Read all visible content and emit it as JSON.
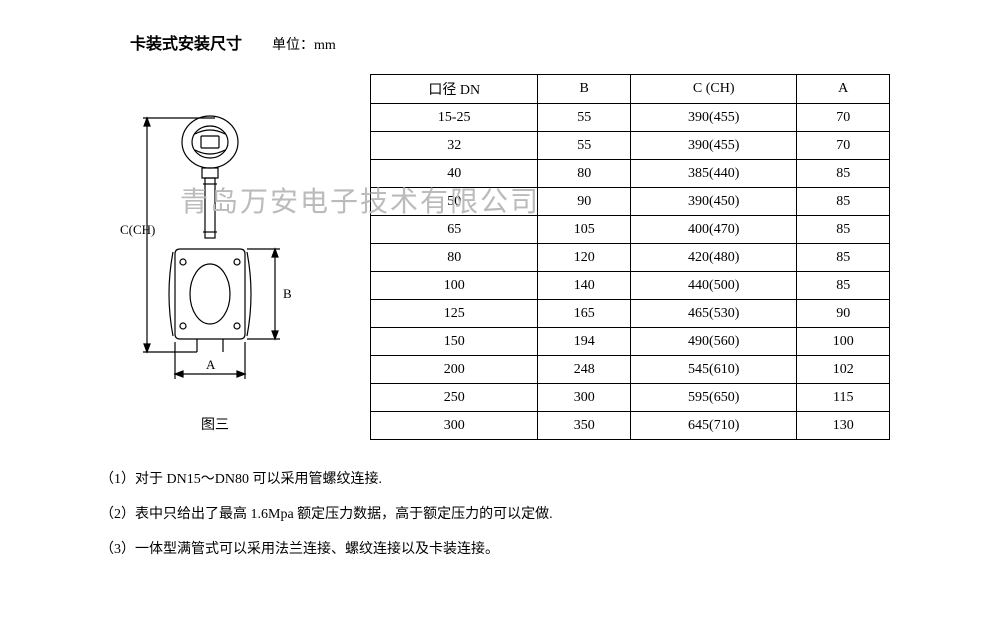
{
  "header": {
    "title": "卡装式安装尺寸",
    "unit_label": "单位：mm"
  },
  "watermark_text": "青岛万安电子技术有限公司",
  "diagram": {
    "caption": "图三",
    "labels": {
      "c_ch": "C(CH)",
      "b": "B",
      "a": "A"
    }
  },
  "table": {
    "headers": [
      "口径 DN",
      "B",
      "C (CH)",
      "A"
    ],
    "rows": [
      [
        "15-25",
        "55",
        "390(455)",
        "70"
      ],
      [
        "32",
        "55",
        "390(455)",
        "70"
      ],
      [
        "40",
        "80",
        "385(440)",
        "85"
      ],
      [
        "50",
        "90",
        "390(450)",
        "85"
      ],
      [
        "65",
        "105",
        "400(470)",
        "85"
      ],
      [
        "80",
        "120",
        "420(480)",
        "85"
      ],
      [
        "100",
        "140",
        "440(500)",
        "85"
      ],
      [
        "125",
        "165",
        "465(530)",
        "90"
      ],
      [
        "150",
        "194",
        "490(560)",
        "100"
      ],
      [
        "200",
        "248",
        "545(610)",
        "102"
      ],
      [
        "250",
        "300",
        "595(650)",
        "115"
      ],
      [
        "300",
        "350",
        "645(710)",
        "130"
      ]
    ]
  },
  "notes": {
    "items": [
      "（1）对于 DN15～DN80 可以采用管螺纹连接.",
      "（2）表中只给出了最高 1.6Mpa 额定压力数据，高于额定压力的可以定做.",
      "（3）一体型满管式可以采用法兰连接、螺纹连接以及卡装连接。"
    ]
  },
  "style": {
    "border_color": "#000000",
    "stroke_color": "#000000",
    "text_color": "#000000",
    "watermark_color": "#bbbbbb"
  }
}
